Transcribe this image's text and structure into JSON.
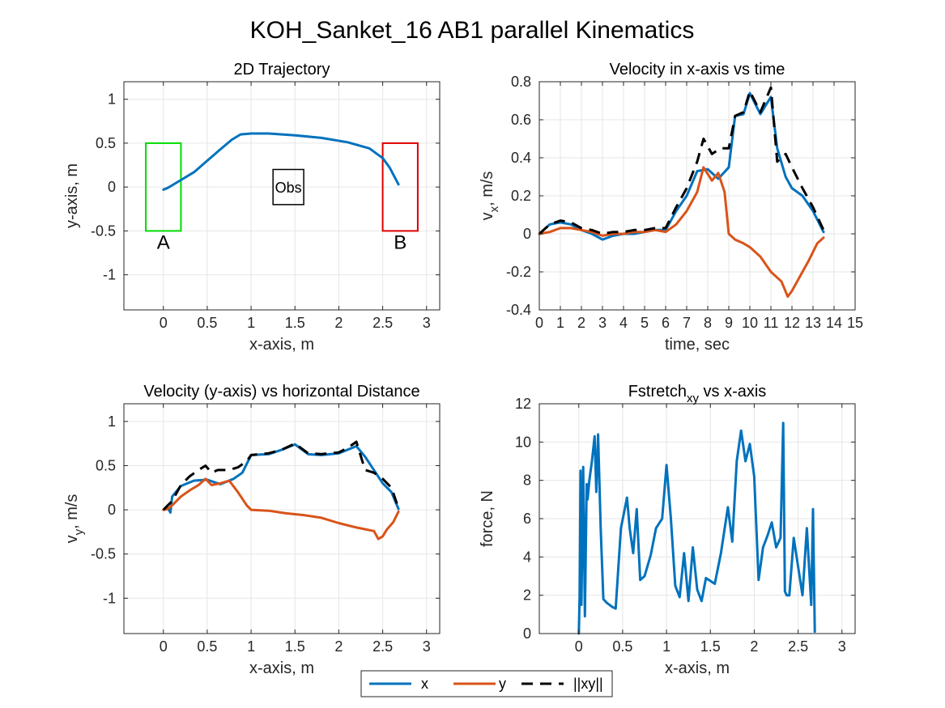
{
  "figure": {
    "suptitle": "KOH_Sanket_16    AB1    parallel    Kinematics"
  },
  "legend": {
    "entries": [
      {
        "label": "x",
        "color": "#0072BD",
        "style": "solid"
      },
      {
        "label": "y",
        "color": "#D95319",
        "style": "solid"
      },
      {
        "label": "||xy||",
        "color": "#000000",
        "style": "dashed"
      }
    ]
  },
  "chart_data": [
    {
      "type": "line",
      "title": "2D Trajectory",
      "xlabel": "x-axis, m",
      "ylabel": "y-axis, m",
      "xlim": [
        -0.45,
        3.15
      ],
      "ylim": [
        -1.4,
        1.2
      ],
      "xticks": [
        "0",
        "0.5",
        "1",
        "1.5",
        "2",
        "2.5",
        "3"
      ],
      "yticks": [
        "-1",
        "-0.5",
        "0",
        "0.5",
        "1"
      ],
      "grid": true,
      "series": [
        {
          "color": "#0072BD",
          "x": [
            0.0,
            0.05,
            0.1,
            0.2,
            0.35,
            0.5,
            0.65,
            0.78,
            0.88,
            1.0,
            1.2,
            1.5,
            1.8,
            2.1,
            2.35,
            2.5,
            2.58,
            2.68
          ],
          "y": [
            -0.03,
            -0.01,
            0.02,
            0.08,
            0.17,
            0.3,
            0.43,
            0.54,
            0.6,
            0.61,
            0.61,
            0.59,
            0.56,
            0.51,
            0.44,
            0.33,
            0.22,
            0.03
          ]
        }
      ],
      "regions": [
        {
          "label": "A",
          "x": [
            -0.2,
            0.2
          ],
          "y": [
            -0.5,
            0.5
          ],
          "color": "#00DD00"
        },
        {
          "label": "B",
          "x": [
            2.5,
            2.9
          ],
          "y": [
            -0.5,
            0.5
          ],
          "color": "#DD0000"
        },
        {
          "label": "Obs",
          "x": [
            1.25,
            1.6
          ],
          "y": [
            -0.2,
            0.2
          ],
          "color": "#000000"
        }
      ]
    },
    {
      "type": "line",
      "title": "Velocity in x-axis vs time",
      "xlabel": "time, sec",
      "ylabel": "v_x, m/s",
      "xlim": [
        0,
        15
      ],
      "ylim": [
        -0.4,
        0.8
      ],
      "xticks": [
        "0",
        "1",
        "2",
        "3",
        "4",
        "5",
        "6",
        "7",
        "8",
        "9",
        "10",
        "11",
        "12",
        "13",
        "14",
        "15"
      ],
      "yticks": [
        "-0.4",
        "-0.2",
        "0",
        "0.2",
        "0.4",
        "0.6",
        "0.8"
      ],
      "grid": true,
      "series": [
        {
          "color": "#0072BD",
          "x": [
            0,
            0.5,
            1,
            1.5,
            2,
            2.5,
            3,
            3.5,
            4,
            4.5,
            5,
            5.5,
            6,
            6.5,
            7,
            7.5,
            8,
            8.5,
            9,
            9.3,
            9.7,
            10,
            10.5,
            11,
            11.3,
            11.7,
            12,
            12.5,
            13,
            13.5
          ],
          "y": [
            0,
            0.05,
            0.06,
            0.05,
            0.02,
            0.0,
            -0.03,
            -0.01,
            0.0,
            0.0,
            0.01,
            0.02,
            0.02,
            0.12,
            0.2,
            0.33,
            0.34,
            0.29,
            0.35,
            0.62,
            0.63,
            0.74,
            0.63,
            0.72,
            0.45,
            0.3,
            0.24,
            0.2,
            0.12,
            0.01
          ]
        },
        {
          "color": "#D95319",
          "x": [
            0,
            0.5,
            1,
            1.5,
            2,
            2.5,
            3,
            3.5,
            4,
            4.5,
            5,
            5.5,
            6,
            6.5,
            7,
            7.5,
            7.8,
            8.2,
            8.5,
            8.8,
            9,
            9.3,
            9.7,
            10,
            10.5,
            11,
            11.5,
            11.8,
            12,
            12.3,
            12.8,
            13.2,
            13.5
          ],
          "y": [
            0,
            0.01,
            0.03,
            0.03,
            0.02,
            0.01,
            -0.01,
            0.0,
            0.0,
            0.01,
            0.01,
            0.02,
            0.01,
            0.05,
            0.12,
            0.22,
            0.35,
            0.28,
            0.32,
            0.22,
            0.0,
            -0.03,
            -0.05,
            -0.07,
            -0.12,
            -0.2,
            -0.25,
            -0.33,
            -0.3,
            -0.24,
            -0.14,
            -0.05,
            -0.02
          ]
        },
        {
          "color": "#000000",
          "x": [
            0,
            0.5,
            1,
            1.5,
            2,
            2.5,
            3,
            3.5,
            4,
            4.5,
            5,
            5.5,
            6,
            6.5,
            7,
            7.5,
            7.8,
            8.2,
            8.6,
            9,
            9.3,
            9.7,
            10,
            10.5,
            11,
            11.3,
            11.7,
            12,
            12.5,
            13,
            13.5
          ],
          "y": [
            0,
            0.05,
            0.07,
            0.06,
            0.03,
            0.02,
            0.0,
            0.01,
            0.01,
            0.02,
            0.02,
            0.03,
            0.03,
            0.14,
            0.24,
            0.38,
            0.5,
            0.42,
            0.45,
            0.45,
            0.62,
            0.64,
            0.75,
            0.64,
            0.77,
            0.38,
            0.42,
            0.35,
            0.24,
            0.14,
            0.02
          ]
        }
      ]
    },
    {
      "type": "line",
      "title": "Velocity (y-axis) vs horizontal Distance",
      "xlabel": "x-axis, m",
      "ylabel": "v_y, m/s",
      "xlim": [
        -0.45,
        3.15
      ],
      "ylim": [
        -1.4,
        1.2
      ],
      "xticks": [
        "0",
        "0.5",
        "1",
        "1.5",
        "2",
        "2.5",
        "3"
      ],
      "yticks": [
        "-1",
        "-0.5",
        "0",
        "0.5",
        "1"
      ],
      "grid": true,
      "series": [
        {
          "color": "#0072BD",
          "x": [
            0.0,
            0.05,
            0.08,
            0.1,
            0.2,
            0.35,
            0.5,
            0.65,
            0.8,
            0.9,
            1.0,
            1.2,
            1.35,
            1.5,
            1.65,
            1.8,
            2.0,
            2.1,
            2.2,
            2.3,
            2.4,
            2.5,
            2.6,
            2.68
          ],
          "y": [
            0.0,
            0.02,
            -0.03,
            0.15,
            0.27,
            0.33,
            0.34,
            0.29,
            0.35,
            0.42,
            0.62,
            0.63,
            0.68,
            0.74,
            0.63,
            0.62,
            0.64,
            0.68,
            0.72,
            0.6,
            0.45,
            0.3,
            0.2,
            0.01
          ]
        },
        {
          "color": "#D95319",
          "x": [
            0.0,
            0.05,
            0.1,
            0.2,
            0.3,
            0.4,
            0.48,
            0.55,
            0.65,
            0.75,
            0.85,
            0.95,
            1.0,
            1.2,
            1.4,
            1.6,
            1.8,
            2.0,
            2.2,
            2.4,
            2.45,
            2.5,
            2.55,
            2.62,
            2.68
          ],
          "y": [
            0.0,
            0.01,
            0.05,
            0.15,
            0.22,
            0.28,
            0.35,
            0.28,
            0.3,
            0.33,
            0.2,
            0.05,
            0.0,
            -0.01,
            -0.04,
            -0.06,
            -0.09,
            -0.15,
            -0.2,
            -0.24,
            -0.33,
            -0.3,
            -0.22,
            -0.14,
            -0.02
          ]
        },
        {
          "color": "#000000",
          "x": [
            0.0,
            0.05,
            0.1,
            0.2,
            0.3,
            0.4,
            0.48,
            0.55,
            0.62,
            0.75,
            0.85,
            0.95,
            1.0,
            1.2,
            1.35,
            1.5,
            1.65,
            1.8,
            2.0,
            2.1,
            2.2,
            2.3,
            2.4,
            2.5,
            2.6,
            2.68
          ],
          "y": [
            0.0,
            0.05,
            0.1,
            0.28,
            0.38,
            0.45,
            0.5,
            0.42,
            0.45,
            0.45,
            0.48,
            0.55,
            0.62,
            0.64,
            0.68,
            0.75,
            0.64,
            0.63,
            0.65,
            0.7,
            0.77,
            0.45,
            0.42,
            0.35,
            0.25,
            0.02
          ]
        }
      ]
    },
    {
      "type": "line",
      "title": "Fstretch_xy vs x-axis",
      "xlabel": "x-axis, m",
      "ylabel": "force, N",
      "xlim": [
        -0.45,
        3.15
      ],
      "ylim": [
        0,
        12
      ],
      "xticks": [
        "0",
        "0.5",
        "1",
        "1.5",
        "2",
        "2.5",
        "3"
      ],
      "yticks": [
        "0",
        "2",
        "4",
        "6",
        "8",
        "10",
        "12"
      ],
      "grid": true,
      "series": [
        {
          "color": "#0072BD",
          "x": [
            0.0,
            0.01,
            0.02,
            0.03,
            0.05,
            0.07,
            0.09,
            0.1,
            0.12,
            0.15,
            0.18,
            0.2,
            0.22,
            0.25,
            0.28,
            0.32,
            0.38,
            0.42,
            0.48,
            0.55,
            0.58,
            0.62,
            0.66,
            0.7,
            0.75,
            0.82,
            0.88,
            0.95,
            1.0,
            1.05,
            1.1,
            1.15,
            1.2,
            1.25,
            1.3,
            1.35,
            1.4,
            1.45,
            1.55,
            1.62,
            1.7,
            1.75,
            1.8,
            1.85,
            1.9,
            1.95,
            2.0,
            2.05,
            2.1,
            2.15,
            2.2,
            2.25,
            2.28,
            2.3,
            2.33,
            2.35,
            2.37,
            2.4,
            2.45,
            2.5,
            2.55,
            2.6,
            2.65,
            2.67,
            2.69
          ],
          "y": [
            0.0,
            2.0,
            8.5,
            1.5,
            8.7,
            0.9,
            7.8,
            7.0,
            8.0,
            9.0,
            10.3,
            7.4,
            10.4,
            5.5,
            1.8,
            1.6,
            1.4,
            1.3,
            5.5,
            7.1,
            5.5,
            4.2,
            6.5,
            2.8,
            3.0,
            4.1,
            5.5,
            6.0,
            8.8,
            6.0,
            2.5,
            1.9,
            4.2,
            1.7,
            4.5,
            2.3,
            1.7,
            2.9,
            2.6,
            4.2,
            6.6,
            4.8,
            9.0,
            10.6,
            9.0,
            9.9,
            8.2,
            2.8,
            4.5,
            5.1,
            5.8,
            4.5,
            4.8,
            5.0,
            11.0,
            2.2,
            2.0,
            2.0,
            5.0,
            3.5,
            2.0,
            5.5,
            1.5,
            6.5,
            0.1
          ]
        }
      ]
    }
  ]
}
